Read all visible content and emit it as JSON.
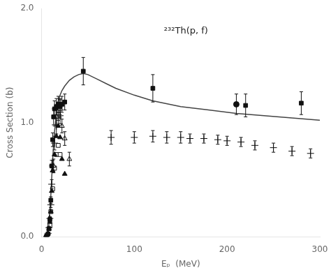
{
  "chart_data": {
    "type": "scatter",
    "annotation": "²³²Th(p, f)",
    "xlabel": "Eₚ  (MeV)",
    "ylabel": "Cross Section (b)",
    "xlim": [
      0,
      300
    ],
    "ylim": [
      0.0,
      2.0
    ],
    "xticks": [
      0,
      100,
      200,
      300
    ],
    "yticks": [
      {
        "value": 0.0,
        "label": "0.0"
      },
      {
        "value": 1.0,
        "label": "1.0"
      },
      {
        "value": 2.0,
        "label": "2.0"
      }
    ],
    "grid": false,
    "series": [
      {
        "type": "line",
        "line_style": "solid",
        "color": "#444444",
        "x": [
          3,
          4,
          5,
          6,
          7,
          8,
          9,
          10,
          11,
          12,
          14,
          16,
          18,
          20,
          22,
          25,
          30,
          35,
          40,
          45,
          50,
          60,
          70,
          80,
          100,
          120,
          150,
          180,
          210,
          240,
          270,
          300
        ],
        "values": [
          0.001,
          0.004,
          0.012,
          0.03,
          0.07,
          0.14,
          0.24,
          0.36,
          0.52,
          0.68,
          0.92,
          1.08,
          1.18,
          1.24,
          1.28,
          1.32,
          1.37,
          1.4,
          1.42,
          1.43,
          1.42,
          1.38,
          1.34,
          1.3,
          1.24,
          1.19,
          1.14,
          1.11,
          1.08,
          1.06,
          1.04,
          1.02
        ]
      },
      {
        "type": "scatter",
        "marker": "square",
        "color": "#111111",
        "x": [
          5.5,
          7,
          8,
          9,
          10,
          11,
          12,
          13,
          14,
          16,
          18,
          20,
          22,
          25,
          45,
          120,
          220,
          280
        ],
        "values": [
          0.005,
          0.025,
          0.07,
          0.15,
          0.32,
          0.62,
          0.85,
          1.05,
          1.12,
          1.14,
          1.16,
          1.14,
          1.16,
          1.18,
          1.45,
          1.3,
          1.15,
          1.17
        ],
        "yerr": [
          0.003,
          0.005,
          0.01,
          0.02,
          0.03,
          0.05,
          0.06,
          0.07,
          0.07,
          0.07,
          0.07,
          0.07,
          0.07,
          0.07,
          0.12,
          0.12,
          0.1,
          0.1
        ]
      },
      {
        "type": "scatter",
        "marker": "circle",
        "color": "#111111",
        "x": [
          210
        ],
        "values": [
          1.16
        ],
        "yerr": [
          0.09
        ]
      },
      {
        "type": "scatter",
        "marker": "open_triangle",
        "color": "#111111",
        "x": [
          13,
          16,
          18,
          20,
          22,
          25,
          30
        ],
        "values": [
          0.62,
          1.05,
          1.1,
          1.12,
          0.97,
          0.86,
          0.68
        ],
        "yerr": [
          0.06,
          0.07,
          0.08,
          0.08,
          0.06,
          0.06,
          0.06
        ]
      },
      {
        "type": "scatter",
        "marker": "triangle",
        "color": "#111111",
        "x": [
          4,
          5,
          6,
          7,
          8,
          9,
          10,
          11,
          12,
          14,
          16,
          18,
          20,
          22,
          25
        ],
        "values": [
          0.001,
          0.004,
          0.012,
          0.03,
          0.07,
          0.13,
          0.22,
          0.4,
          0.58,
          0.72,
          0.88,
          0.97,
          0.87,
          0.68,
          0.55
        ]
      },
      {
        "type": "scatter",
        "marker": "plus",
        "color": "#111111",
        "x": [
          7,
          8,
          9,
          10,
          11,
          12,
          14,
          16,
          18,
          20
        ],
        "values": [
          0.03,
          0.08,
          0.16,
          0.28,
          0.46,
          0.62,
          0.82,
          0.97,
          1.05,
          1.06
        ],
        "yerr": [
          0.003,
          0.008,
          0.015,
          0.025,
          0.04,
          0.05,
          0.06,
          0.07,
          0.08,
          0.07
        ]
      },
      {
        "type": "scatter",
        "marker": "open_square",
        "color": "#111111",
        "x": [
          9,
          10,
          12,
          14,
          16,
          18,
          20
        ],
        "values": [
          0.1,
          0.22,
          0.42,
          0.6,
          0.72,
          0.8,
          0.72
        ]
      },
      {
        "type": "scatter",
        "marker": "plus",
        "color": "#111111",
        "x": [
          75,
          100,
          120,
          135,
          150,
          160,
          175,
          190,
          200,
          215,
          230,
          250,
          270,
          290
        ],
        "values": [
          0.87,
          0.87,
          0.88,
          0.87,
          0.87,
          0.86,
          0.86,
          0.85,
          0.84,
          0.83,
          0.8,
          0.78,
          0.75,
          0.73
        ],
        "yerr": [
          0.06,
          0.05,
          0.05,
          0.05,
          0.05,
          0.04,
          0.04,
          0.04,
          0.04,
          0.04,
          0.04,
          0.04,
          0.04,
          0.04
        ]
      }
    ]
  }
}
